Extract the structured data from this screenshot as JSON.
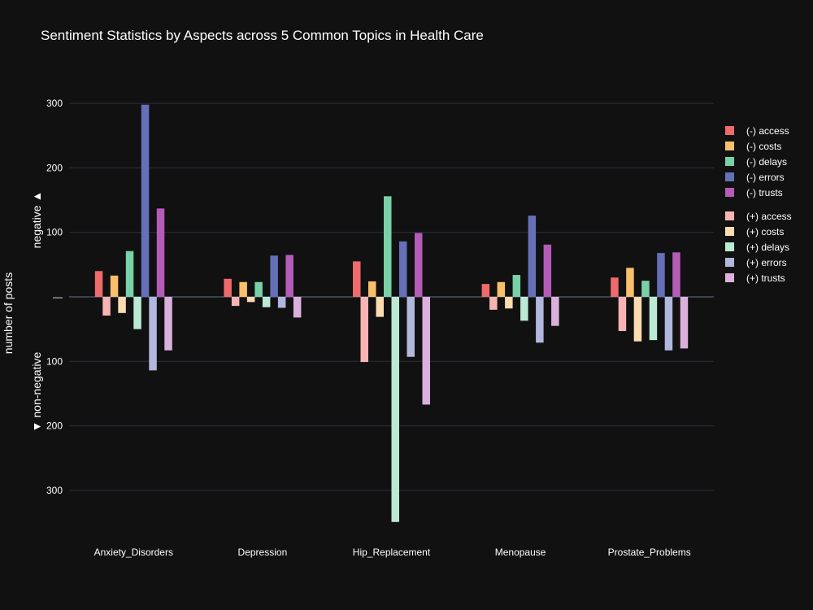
{
  "title": "Sentiment Statistics by Aspects across 5 Common Topics in Health Care",
  "y_axis": {
    "title": "number of posts",
    "upper_label": "negative ▲",
    "lower_label": "▼ non-negative",
    "zero_tick": "—"
  },
  "chart_data": {
    "type": "bar",
    "title": "Sentiment Statistics by Aspects across 5 Common Topics in Health Care",
    "ylabel": "number of posts",
    "ylim": [
      -360,
      310
    ],
    "yticks": [
      {
        "value": 300,
        "label": "300"
      },
      {
        "value": 200,
        "label": "200"
      },
      {
        "value": 100,
        "label": "100"
      },
      {
        "value": 0,
        "label": "—"
      },
      {
        "value": -100,
        "label": "100"
      },
      {
        "value": -200,
        "label": "200"
      },
      {
        "value": -300,
        "label": "300"
      }
    ],
    "grid": true,
    "legend_position": "right",
    "categories": [
      "Anxiety_Disorders",
      "Depression",
      "Hip_Replacement",
      "Menopause",
      "Prostate_Problems"
    ],
    "series": [
      {
        "name": "(-) access",
        "color": "#ef6a6a",
        "values": [
          40,
          28,
          55,
          20,
          30
        ]
      },
      {
        "name": "(+) access",
        "color": "#f8b4b4",
        "values": [
          -29,
          -14,
          -101,
          -20,
          -53
        ]
      },
      {
        "name": "(-) costs",
        "color": "#f9bf6b",
        "values": [
          33,
          23,
          24,
          23,
          45
        ]
      },
      {
        "name": "(+) costs",
        "color": "#fddbb0",
        "values": [
          -25,
          -8,
          -31,
          -18,
          -69
        ]
      },
      {
        "name": "(-) delays",
        "color": "#79d1a8",
        "values": [
          71,
          23,
          156,
          34,
          25
        ]
      },
      {
        "name": "(+) delays",
        "color": "#bce9d3",
        "values": [
          -50,
          -16,
          -349,
          -37,
          -67
        ]
      },
      {
        "name": "(-) errors",
        "color": "#6570b8",
        "values": [
          298,
          64,
          86,
          126,
          68
        ]
      },
      {
        "name": "(+) errors",
        "color": "#b2b7de",
        "values": [
          -114,
          -17,
          -93,
          -71,
          -83
        ]
      },
      {
        "name": "(-) trusts",
        "color": "#b45cb7",
        "values": [
          137,
          65,
          99,
          81,
          69
        ]
      },
      {
        "name": "(+) trusts",
        "color": "#dbb0dd",
        "values": [
          -83,
          -32,
          -167,
          -45,
          -80
        ]
      }
    ]
  },
  "legend": {
    "groups": [
      [
        {
          "label": "(-) access",
          "color": "#ef6a6a"
        },
        {
          "label": "(-) costs",
          "color": "#f9bf6b"
        },
        {
          "label": "(-) delays",
          "color": "#79d1a8"
        },
        {
          "label": "(-) errors",
          "color": "#6570b8"
        },
        {
          "label": "(-) trusts",
          "color": "#b45cb7"
        }
      ],
      [
        {
          "label": "(+) access",
          "color": "#f8b4b4"
        },
        {
          "label": "(+) costs",
          "color": "#fddbb0"
        },
        {
          "label": "(+) delays",
          "color": "#bce9d3"
        },
        {
          "label": "(+) errors",
          "color": "#b2b7de"
        },
        {
          "label": "(+) trusts",
          "color": "#dbb0dd"
        }
      ]
    ]
  },
  "colors": {
    "background": "#111111",
    "grid": "#2c3140",
    "zeroline": "#3a4150",
    "text": "#ffffff"
  }
}
